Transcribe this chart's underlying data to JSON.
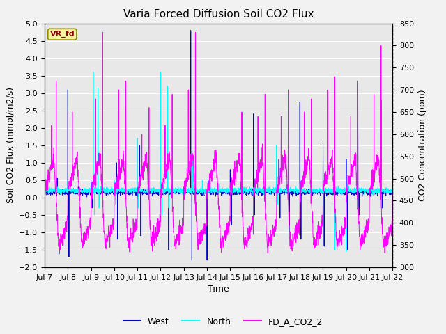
{
  "title": "Varia Forced Diffusion Soil CO2 Flux",
  "ylabel_left": "Soil CO2 Flux (mmol/m2/s)",
  "ylabel_right": "CO2 Concentration (ppm)",
  "xlabel": "Time",
  "ylim_left": [
    -2.0,
    5.0
  ],
  "ylim_right": [
    300,
    850
  ],
  "yticks_left": [
    -2.0,
    -1.5,
    -1.0,
    -0.5,
    0.0,
    0.5,
    1.0,
    1.5,
    2.0,
    2.5,
    3.0,
    3.5,
    4.0,
    4.5,
    5.0
  ],
  "yticks_right": [
    300,
    350,
    400,
    450,
    500,
    550,
    600,
    650,
    700,
    750,
    800,
    850
  ],
  "xtick_labels": [
    "Jul 7",
    "Jul 8",
    "Jul 9",
    "Jul 10",
    "Jul 11",
    "Jul 12",
    "Jul 13",
    "Jul 14",
    "Jul 15",
    "Jul 16",
    "Jul 17",
    "Jul 18",
    "Jul 19",
    "Jul 20",
    "Jul 21",
    "Jul 22"
  ],
  "color_west": "#0000CC",
  "color_north": "#00FFFF",
  "color_co2": "#FF00FF",
  "legend_labels": [
    "West",
    "North",
    "FD_A_CO2_2"
  ],
  "vr_fd_label": "VR_fd",
  "plot_bg_color": "#E8E8E8",
  "grid_color": "#FFFFFF",
  "title_fontsize": 11,
  "axis_fontsize": 9,
  "tick_fontsize": 8,
  "legend_fontsize": 9
}
